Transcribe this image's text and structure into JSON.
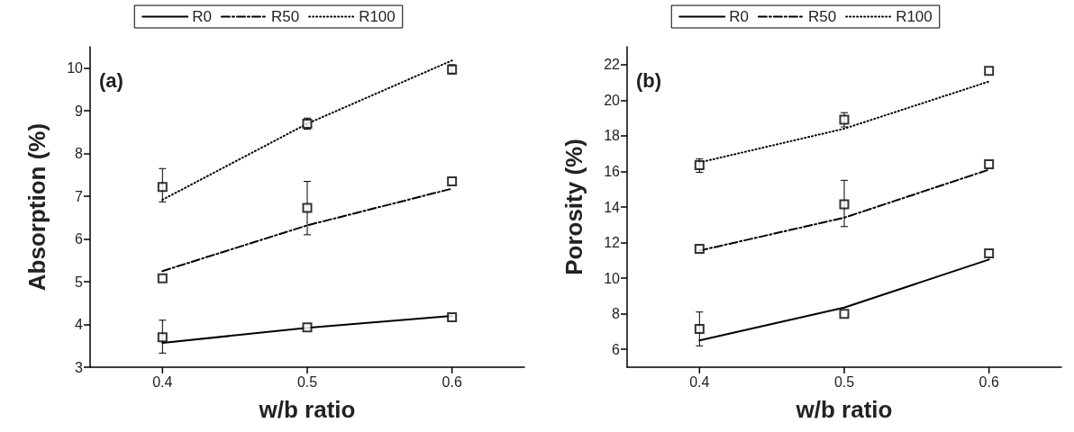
{
  "chart_data": [
    {
      "type": "line",
      "xlabel": "w/b ratio",
      "ylabel": "Absorption (%)",
      "annotations": [
        "(a)"
      ],
      "legend": "top",
      "grid": false,
      "xlim": [
        0.35,
        0.65
      ],
      "xticks": [
        0.4,
        0.5,
        0.6
      ],
      "ylim": [
        3,
        10.5
      ],
      "yticks": [
        3,
        4,
        5,
        6,
        7,
        8,
        9,
        10
      ],
      "series": [
        {
          "name": "R0",
          "color": "#000000",
          "line_style": "solid",
          "marker": "none",
          "x": [
            0.4,
            0.5,
            0.6
          ],
          "values": [
            3.57,
            3.92,
            4.2
          ]
        },
        {
          "name": "R50",
          "color": "#000000",
          "line_style": "dashdot",
          "marker": "none",
          "x": [
            0.4,
            0.5,
            0.6
          ],
          "values": [
            5.25,
            6.32,
            7.18
          ]
        },
        {
          "name": "R100",
          "color": "#000000",
          "line_style": "dotted",
          "marker": "none",
          "x": [
            0.4,
            0.5,
            0.6
          ],
          "values": [
            6.92,
            8.7,
            10.18
          ]
        },
        {
          "type": "scatter",
          "color": "#000000",
          "marker": "square",
          "x": [
            0.4,
            0.5,
            0.6
          ],
          "values": [
            3.7,
            3.93,
            4.17
          ],
          "errors": [
            [
              3.33,
              4.1
            ],
            null,
            null
          ]
        },
        {
          "type": "scatter",
          "color": "#000000",
          "marker": "square",
          "x": [
            0.4,
            0.5,
            0.6
          ],
          "values": [
            5.08,
            6.73,
            7.35
          ],
          "errors": [
            null,
            [
              6.1,
              7.35
            ],
            null
          ]
        },
        {
          "type": "scatter",
          "color": "#000000",
          "marker": "square",
          "x": [
            0.4,
            0.5,
            0.6
          ],
          "values": [
            7.22,
            8.7,
            9.97
          ],
          "errors": [
            [
              6.87,
              7.65
            ],
            [
              8.57,
              8.83
            ],
            [
              9.87,
              10.08
            ]
          ]
        }
      ]
    },
    {
      "type": "line",
      "xlabel": "w/b ratio",
      "ylabel": "Porosity (%)",
      "annotations": [
        "(b)"
      ],
      "legend": "top",
      "grid": false,
      "xlim": [
        0.35,
        0.65
      ],
      "xticks": [
        0.4,
        0.5,
        0.6
      ],
      "ylim": [
        5,
        23
      ],
      "yticks": [
        6,
        8,
        10,
        12,
        14,
        16,
        18,
        20,
        22
      ],
      "series": [
        {
          "name": "R0",
          "color": "#000000",
          "line_style": "solid",
          "marker": "none",
          "x": [
            0.4,
            0.5,
            0.6
          ],
          "values": [
            6.5,
            8.35,
            11.05
          ]
        },
        {
          "name": "R50",
          "color": "#000000",
          "line_style": "dashdot",
          "marker": "none",
          "x": [
            0.4,
            0.5,
            0.6
          ],
          "values": [
            11.55,
            13.4,
            16.1
          ]
        },
        {
          "name": "R100",
          "color": "#000000",
          "line_style": "dotted",
          "marker": "none",
          "x": [
            0.4,
            0.5,
            0.6
          ],
          "values": [
            16.5,
            18.4,
            21.05
          ]
        },
        {
          "type": "scatter",
          "color": "#000000",
          "marker": "square",
          "x": [
            0.4,
            0.5,
            0.6
          ],
          "values": [
            7.15,
            8.0,
            11.4
          ],
          "errors": [
            [
              6.2,
              8.1
            ],
            null,
            null
          ]
        },
        {
          "type": "scatter",
          "color": "#000000",
          "marker": "square",
          "x": [
            0.4,
            0.5,
            0.6
          ],
          "values": [
            11.65,
            14.15,
            16.4
          ],
          "errors": [
            null,
            [
              12.9,
              15.5
            ],
            null
          ]
        },
        {
          "type": "scatter",
          "color": "#000000",
          "marker": "square",
          "x": [
            0.4,
            0.5,
            0.6
          ],
          "values": [
            16.35,
            18.9,
            21.65
          ],
          "errors": [
            [
              15.95,
              16.7
            ],
            [
              18.5,
              19.3
            ],
            null
          ]
        }
      ]
    }
  ]
}
